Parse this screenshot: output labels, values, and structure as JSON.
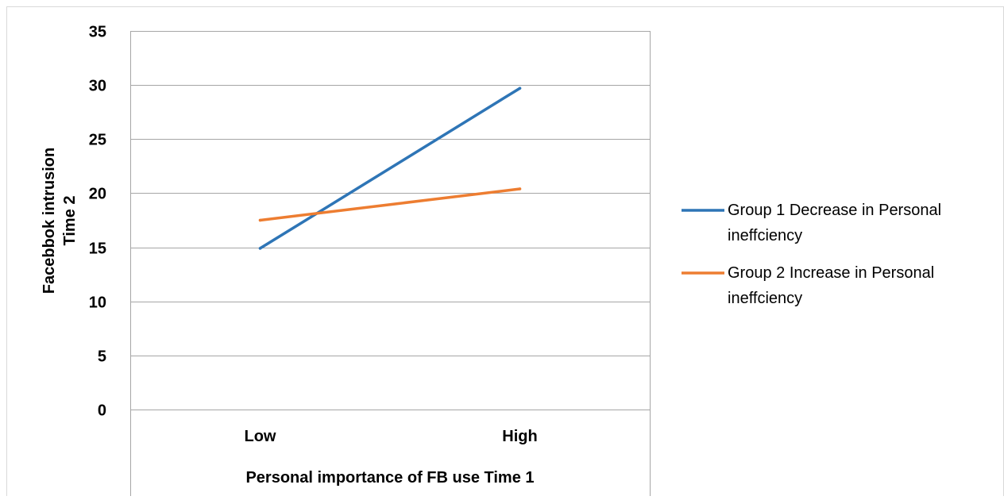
{
  "chart_data": {
    "type": "line",
    "title": "",
    "xlabel": "Personal importance of FB use Time 1",
    "ylabel_lines": [
      "Facebbok intrusion",
      "Time 2"
    ],
    "categories": [
      "Low",
      "High"
    ],
    "ylim": [
      0,
      35
    ],
    "yticks": [
      0,
      5,
      10,
      15,
      20,
      25,
      30,
      35
    ],
    "grid": true,
    "legend_position": "right",
    "series": [
      {
        "name": "Group 1 Decrease in Personal ineffciency",
        "name_lines": [
          "Group 1 Decrease in Personal",
          "ineffciency"
        ],
        "values": [
          14.9,
          29.7
        ],
        "color": "#2E75B6"
      },
      {
        "name": "Group 2 Increase in Personal ineffciency",
        "name_lines": [
          "Group 2 Increase in Personal",
          "ineffciency"
        ],
        "values": [
          17.5,
          20.4
        ],
        "color": "#ED7D31"
      }
    ]
  }
}
